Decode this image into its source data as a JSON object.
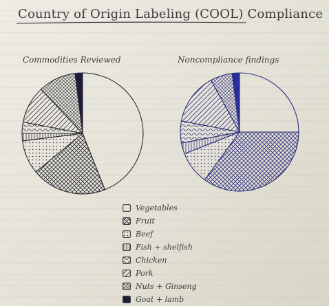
{
  "title": "Country of Origin Labeling (COOL) Compliance",
  "legend": [
    {
      "label": "Vegetables",
      "pattern": "blank"
    },
    {
      "label": "Fruit",
      "pattern": "cross"
    },
    {
      "label": "Beef",
      "pattern": "dots"
    },
    {
      "label": "Fish + shelfish",
      "pattern": "vlines"
    },
    {
      "label": "Chicken",
      "pattern": "wave"
    },
    {
      "label": "Pork",
      "pattern": "diag"
    },
    {
      "label": "Nuts + Ginseng",
      "pattern": "grid"
    },
    {
      "label": "Goat + lamb",
      "pattern": "solid"
    }
  ],
  "chart_data": [
    {
      "type": "pie",
      "title": "Commodities Reviewed",
      "categories": [
        "Vegetables",
        "Fruit",
        "Beef",
        "Fish + shelfish",
        "Chicken",
        "Pork",
        "Nuts + Ginseng",
        "Goat + lamb"
      ],
      "values": [
        44,
        20,
        9,
        2,
        3,
        10,
        10,
        2
      ],
      "ink_colors": [
        "#2b2b33",
        "#2b2b33",
        "#2b2b33",
        "#2b2b33",
        "#2b2b33",
        "#2b2b33",
        "#2b2b33",
        "#1e1e3c"
      ]
    },
    {
      "type": "pie",
      "title": "Noncompliance findings",
      "categories": [
        "Vegetables",
        "Fruit",
        "Beef",
        "Fish + shelfish",
        "Chicken",
        "Pork",
        "Nuts + Ginseng",
        "Goat + lamb"
      ],
      "values": [
        25,
        35,
        9,
        3,
        6,
        14,
        6,
        2
      ],
      "ink_colors": [
        "#2f3180",
        "#2f3180",
        "#2f3180",
        "#2f3180",
        "#2f3180",
        "#2f3180",
        "#2f3180",
        "#2f3180"
      ]
    }
  ]
}
